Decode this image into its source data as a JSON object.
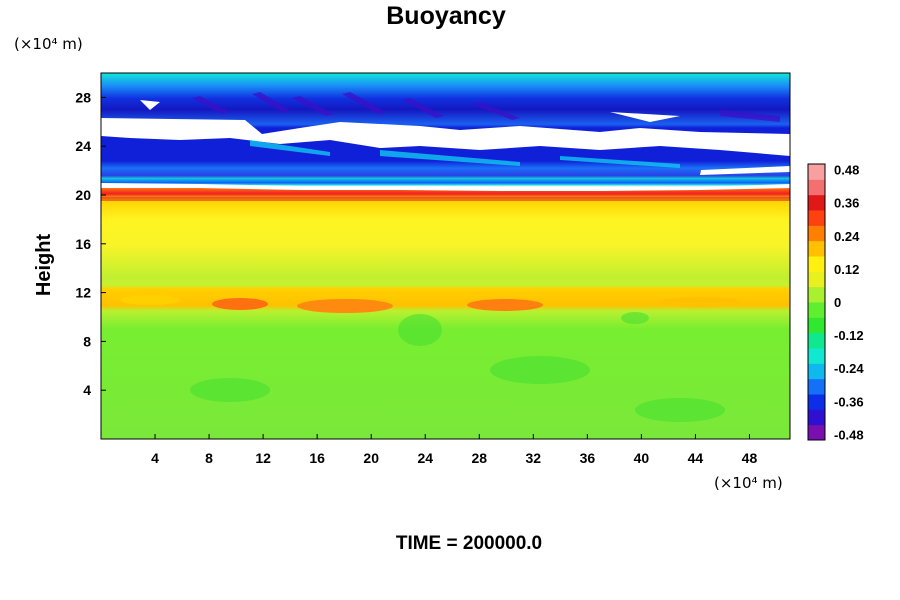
{
  "chart_data": {
    "type": "heatmap",
    "title": "Buoyancy",
    "xlabel": "",
    "ylabel": "Height",
    "x_unit": "(×10⁴ m)",
    "y_unit": "(×10⁴ m)",
    "xlim": [
      0,
      51
    ],
    "ylim": [
      0,
      30
    ],
    "x_ticks": [
      "4",
      "8",
      "12",
      "16",
      "20",
      "24",
      "28",
      "32",
      "36",
      "40",
      "44",
      "48"
    ],
    "y_ticks": [
      "4",
      "8",
      "12",
      "16",
      "20",
      "24",
      "28"
    ],
    "footer": "TIME = 200000.0",
    "colorbar": {
      "range": [
        -0.5,
        0.5
      ],
      "tick_labels": [
        "0.48",
        "0.36",
        "0.24",
        "0.12",
        "0",
        "-0.12",
        "-0.24",
        "-0.36",
        "-0.48"
      ],
      "tick_values": [
        0.48,
        0.36,
        0.24,
        0.12,
        0,
        -0.12,
        -0.24,
        -0.36,
        -0.48
      ],
      "colors": [
        "#7a0fb0",
        "#3010d0",
        "#0d2ee8",
        "#1570f8",
        "#10b8f0",
        "#10e8d0",
        "#10e890",
        "#30e830",
        "#60ee30",
        "#a8f030",
        "#e8f020",
        "#fff010",
        "#ffc000",
        "#ff8000",
        "#ff4010",
        "#e01818",
        "#f47070",
        "#f8a0a0"
      ]
    },
    "field_bands": [
      {
        "y_from": 28.5,
        "y_to": 30,
        "value": -0.15
      },
      {
        "y_from": 27,
        "y_to": 28.5,
        "value": -0.32
      },
      {
        "y_from": 26,
        "y_to": 27,
        "value": -0.42
      },
      {
        "y_from": 24,
        "y_to": 26,
        "value": "undefined"
      },
      {
        "y_from": 23,
        "y_to": 24,
        "value": -0.38
      },
      {
        "y_from": 22,
        "y_to": 23,
        "value": -0.1
      },
      {
        "y_from": 21.5,
        "y_to": 22,
        "value": 0.2
      },
      {
        "y_from": 21,
        "y_to": 21.5,
        "value": -0.2
      },
      {
        "y_from": 20.3,
        "y_to": 21,
        "value": 0.08
      },
      {
        "y_from": 19.5,
        "y_to": 20.3,
        "value": 0.36
      },
      {
        "y_from": 16,
        "y_to": 19.5,
        "value": 0.14
      },
      {
        "y_from": 12,
        "y_to": 16,
        "value": 0.08
      },
      {
        "y_from": 10.5,
        "y_to": 12,
        "value": 0.28
      },
      {
        "y_from": 0,
        "y_to": 10.5,
        "value": 0.02
      }
    ]
  }
}
